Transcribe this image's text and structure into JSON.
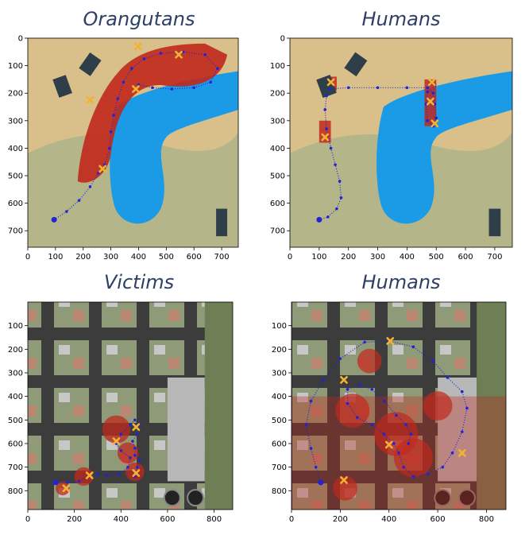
{
  "colors": {
    "title": "#2e3f66",
    "path": "#1f24d6",
    "marker": "#f2b233",
    "heat": "#c0281c",
    "water": "#1b9be6",
    "sand": "#d9c08a",
    "grass": "#a7b38a",
    "road": "#3a3a3a",
    "block": "#8d9478"
  },
  "chart_data": [
    {
      "type": "scatter",
      "title": "Orangutans",
      "xlim": [
        0,
        760
      ],
      "ylim": [
        760,
        0
      ],
      "x_ticks": [
        "0",
        "100",
        "200",
        "300",
        "400",
        "500",
        "600",
        "700"
      ],
      "y_ticks": [
        "0",
        "100",
        "200",
        "300",
        "400",
        "500",
        "600",
        "700"
      ],
      "background": "forest-lake-terrain",
      "path": [
        [
          95,
          660
        ],
        [
          140,
          630
        ],
        [
          185,
          590
        ],
        [
          225,
          540
        ],
        [
          255,
          490
        ],
        [
          278,
          460
        ],
        [
          295,
          400
        ],
        [
          300,
          340
        ],
        [
          310,
          280
        ],
        [
          325,
          220
        ],
        [
          345,
          160
        ],
        [
          375,
          110
        ],
        [
          420,
          75
        ],
        [
          480,
          55
        ],
        [
          560,
          50
        ],
        [
          640,
          60
        ],
        [
          685,
          110
        ],
        [
          660,
          160
        ],
        [
          600,
          180
        ],
        [
          520,
          185
        ],
        [
          450,
          180
        ],
        [
          400,
          170
        ]
      ],
      "path_start": [
        95,
        660
      ],
      "markers": [
        [
          398,
          30
        ],
        [
          545,
          60
        ],
        [
          390,
          185
        ],
        [
          225,
          225
        ],
        [
          270,
          475
        ]
      ]
    },
    {
      "type": "scatter",
      "title": "Humans",
      "xlim": [
        0,
        760
      ],
      "ylim": [
        760,
        0
      ],
      "x_ticks": [
        "0",
        "100",
        "200",
        "300",
        "400",
        "500",
        "600",
        "700"
      ],
      "y_ticks": [
        "0",
        "100",
        "200",
        "300",
        "400",
        "500",
        "600",
        "700"
      ],
      "background": "forest-lake-terrain",
      "path": [
        [
          100,
          660
        ],
        [
          130,
          650
        ],
        [
          160,
          620
        ],
        [
          175,
          580
        ],
        [
          170,
          520
        ],
        [
          155,
          460
        ],
        [
          140,
          400
        ],
        [
          125,
          330
        ],
        [
          120,
          260
        ],
        [
          125,
          210
        ],
        [
          135,
          185
        ],
        [
          200,
          180
        ],
        [
          300,
          180
        ],
        [
          400,
          180
        ],
        [
          470,
          180
        ],
        [
          490,
          200
        ],
        [
          495,
          240
        ],
        [
          500,
          290
        ],
        [
          490,
          320
        ],
        [
          470,
          300
        ],
        [
          465,
          240
        ],
        [
          470,
          195
        ],
        [
          480,
          165
        ],
        [
          495,
          170
        ]
      ],
      "path_start": [
        100,
        660
      ],
      "markers": [
        [
          140,
          160
        ],
        [
          120,
          360
        ],
        [
          485,
          160
        ],
        [
          480,
          230
        ],
        [
          495,
          310
        ]
      ]
    },
    {
      "type": "scatter",
      "title": "Victims",
      "xlim": [
        0,
        880
      ],
      "ylim": [
        880,
        0
      ],
      "x_ticks": [
        "0",
        "200",
        "400",
        "600",
        "800"
      ],
      "y_ticks": [
        "100",
        "200",
        "300",
        "400",
        "500",
        "600",
        "700",
        "800"
      ],
      "background": "urban-city-blocks",
      "path": [
        [
          120,
          765
        ],
        [
          170,
          765
        ],
        [
          220,
          760
        ],
        [
          260,
          740
        ],
        [
          300,
          730
        ],
        [
          340,
          735
        ],
        [
          390,
          730
        ],
        [
          430,
          700
        ],
        [
          440,
          660
        ],
        [
          400,
          630
        ],
        [
          380,
          600
        ],
        [
          400,
          560
        ],
        [
          440,
          520
        ],
        [
          460,
          500
        ],
        [
          480,
          520
        ],
        [
          470,
          560
        ],
        [
          450,
          590
        ],
        [
          460,
          620
        ],
        [
          460,
          650
        ],
        [
          480,
          670
        ],
        [
          470,
          700
        ],
        [
          460,
          740
        ]
      ],
      "path_start": [
        120,
        765
      ],
      "markers": [
        [
          165,
          790
        ],
        [
          265,
          735
        ],
        [
          380,
          590
        ],
        [
          465,
          530
        ],
        [
          465,
          725
        ]
      ]
    },
    {
      "type": "scatter",
      "title": "Humans",
      "xlim": [
        0,
        880
      ],
      "ylim": [
        880,
        0
      ],
      "x_ticks": [
        "0",
        "200",
        "400",
        "600",
        "800"
      ],
      "y_ticks": [
        "100",
        "200",
        "300",
        "400",
        "500",
        "600",
        "700",
        "800"
      ],
      "background": "urban-city-blocks",
      "path": [
        [
          120,
          765
        ],
        [
          100,
          700
        ],
        [
          80,
          620
        ],
        [
          60,
          520
        ],
        [
          80,
          420
        ],
        [
          130,
          330
        ],
        [
          200,
          240
        ],
        [
          300,
          170
        ],
        [
          400,
          165
        ],
        [
          500,
          190
        ],
        [
          580,
          250
        ],
        [
          640,
          320
        ],
        [
          700,
          380
        ],
        [
          720,
          450
        ],
        [
          700,
          550
        ],
        [
          660,
          640
        ],
        [
          620,
          700
        ],
        [
          560,
          730
        ],
        [
          500,
          740
        ],
        [
          460,
          700
        ],
        [
          440,
          640
        ],
        [
          420,
          600
        ],
        [
          380,
          560
        ],
        [
          330,
          520
        ],
        [
          270,
          490
        ],
        [
          230,
          430
        ],
        [
          230,
          370
        ],
        [
          280,
          350
        ],
        [
          330,
          370
        ],
        [
          380,
          420
        ],
        [
          430,
          480
        ],
        [
          470,
          520
        ],
        [
          490,
          560
        ],
        [
          480,
          600
        ]
      ],
      "path_start": [
        120,
        765
      ],
      "markers": [
        [
          405,
          165
        ],
        [
          215,
          330
        ],
        [
          400,
          605
        ],
        [
          700,
          640
        ],
        [
          215,
          755
        ]
      ]
    }
  ]
}
